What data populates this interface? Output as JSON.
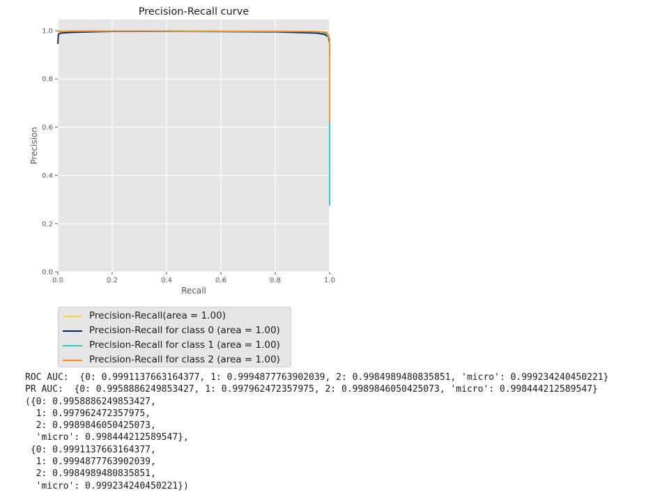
{
  "chart_data": {
    "type": "line",
    "title": "Precision-Recall curve",
    "xlabel": "Recall",
    "ylabel": "Precision",
    "xlim": [
      0.0,
      1.0
    ],
    "ylim": [
      0.0,
      1.0
    ],
    "xticks": [
      "0.0",
      "0.2",
      "0.4",
      "0.6",
      "0.8",
      "1.0"
    ],
    "yticks": [
      "0.0",
      "0.2",
      "0.4",
      "0.6",
      "0.8",
      "1.0"
    ],
    "grid": true,
    "legend_position": "below",
    "series": [
      {
        "name": "Precision-Recall(area = 1.00)",
        "color": "#ffd633",
        "x": [
          0.0,
          0.02,
          0.1,
          0.3,
          0.5,
          0.7,
          0.9,
          0.97,
          0.99,
          1.0,
          1.0
        ],
        "y": [
          0.995,
          0.996,
          0.997,
          0.998,
          0.998,
          0.997,
          0.996,
          0.993,
          0.985,
          0.95,
          0.6
        ]
      },
      {
        "name": "Precision-Recall for class 0 (area = 1.00)",
        "color": "#001a66",
        "x": [
          0.0,
          0.002,
          0.01,
          0.05,
          0.2,
          0.4,
          0.6,
          0.8,
          0.95,
          0.98,
          0.995,
          1.0,
          1.0
        ],
        "y": [
          0.945,
          0.985,
          0.99,
          0.993,
          0.997,
          0.997,
          0.996,
          0.995,
          0.99,
          0.985,
          0.975,
          0.95,
          0.9
        ]
      },
      {
        "name": "Precision-Recall for class 1 (area = 1.00)",
        "color": "#1fcccc",
        "x": [
          0.0,
          0.1,
          0.3,
          0.5,
          0.7,
          0.9,
          0.97,
          0.99,
          1.0,
          1.0
        ],
        "y": [
          0.998,
          0.998,
          0.998,
          0.997,
          0.997,
          0.996,
          0.994,
          0.988,
          0.96,
          0.275
        ]
      },
      {
        "name": "Precision-Recall for class 2 (area = 1.00)",
        "color": "#ff8c1a",
        "x": [
          0.0,
          0.05,
          0.2,
          0.4,
          0.6,
          0.8,
          0.95,
          0.99,
          1.0,
          1.0
        ],
        "y": [
          0.997,
          0.998,
          0.999,
          0.999,
          0.998,
          0.998,
          0.997,
          0.993,
          0.97,
          0.62
        ]
      }
    ]
  },
  "output_lines": [
    "ROC AUC:  {0: 0.9991137663164377, 1: 0.9994877763902039, 2: 0.9984989480835851, 'micro': 0.999234240450221}",
    "PR AUC:  {0: 0.9958886249853427, 1: 0.997962472357975, 2: 0.9989846050425073, 'micro': 0.998444212589547}",
    "({0: 0.9958886249853427,",
    "  1: 0.997962472357975,",
    "  2: 0.9989846050425073,",
    "  'micro': 0.998444212589547},",
    " {0: 0.9991137663164377,",
    "  1: 0.9994877763902039,",
    "  2: 0.9984989480835851,",
    "  'micro': 0.999234240450221})"
  ]
}
